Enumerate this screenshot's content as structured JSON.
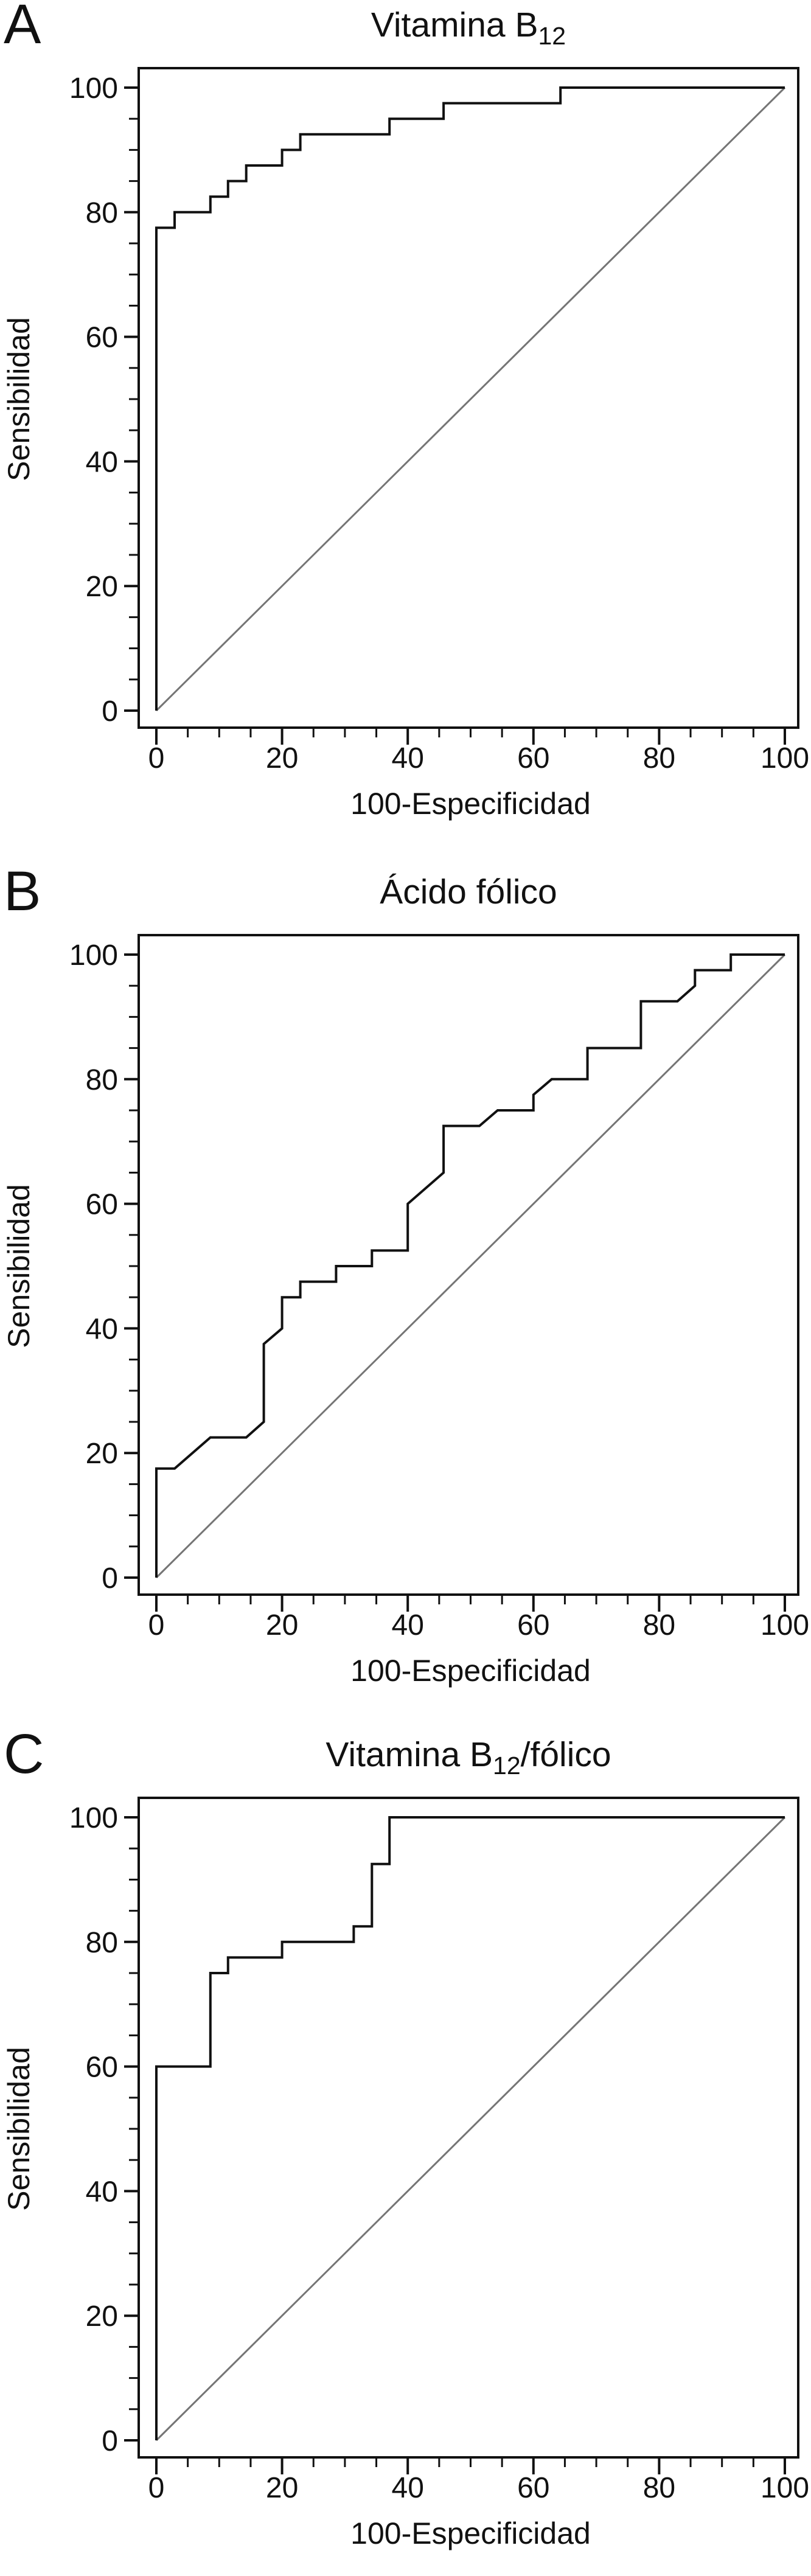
{
  "figure": {
    "background": "#ffffff",
    "curve_color": "#111111",
    "reference_color": "#757575",
    "text_color": "#111111"
  },
  "chart_data": [
    {
      "letter": "A",
      "type": "line",
      "title": {
        "main": "Vitamina B",
        "sub": "12",
        "suffix": ""
      },
      "xlabel": "100-Especificidad",
      "ylabel": "Sensibilidad",
      "xlim": [
        0,
        100
      ],
      "ylim": [
        0,
        100
      ],
      "xticks": [
        0,
        20,
        40,
        60,
        80,
        100
      ],
      "yticks": [
        0,
        20,
        40,
        60,
        80,
        100
      ],
      "minor_tick_step": 5,
      "grid": false,
      "legend": "none",
      "roc_points": [
        [
          0,
          0
        ],
        [
          0,
          77.5
        ],
        [
          2.9,
          77.5
        ],
        [
          2.9,
          80
        ],
        [
          8.6,
          80
        ],
        [
          8.6,
          82.5
        ],
        [
          11.4,
          82.5
        ],
        [
          11.4,
          85
        ],
        [
          14.3,
          85
        ],
        [
          14.3,
          87.5
        ],
        [
          20,
          87.5
        ],
        [
          20,
          90
        ],
        [
          22.9,
          90
        ],
        [
          22.9,
          92.5
        ],
        [
          37.1,
          92.5
        ],
        [
          37.1,
          95
        ],
        [
          45.7,
          95
        ],
        [
          45.7,
          97.5
        ],
        [
          64.3,
          97.5
        ],
        [
          64.3,
          100
        ],
        [
          100,
          100
        ]
      ],
      "reference_points": [
        [
          0,
          0
        ],
        [
          100,
          100
        ]
      ]
    },
    {
      "letter": "B",
      "type": "line",
      "title": {
        "main": "Ácido fólico",
        "sub": "",
        "suffix": ""
      },
      "xlabel": "100-Especificidad",
      "ylabel": "Sensibilidad",
      "xlim": [
        0,
        100
      ],
      "ylim": [
        0,
        100
      ],
      "xticks": [
        0,
        20,
        40,
        60,
        80,
        100
      ],
      "yticks": [
        0,
        20,
        40,
        60,
        80,
        100
      ],
      "minor_tick_step": 5,
      "grid": false,
      "legend": "none",
      "roc_points": [
        [
          0,
          0
        ],
        [
          0,
          17.5
        ],
        [
          2.9,
          17.5
        ],
        [
          8.6,
          22.5
        ],
        [
          14.3,
          22.5
        ],
        [
          17.1,
          25
        ],
        [
          17.1,
          37.5
        ],
        [
          20,
          40
        ],
        [
          20,
          45
        ],
        [
          22.9,
          45
        ],
        [
          22.9,
          47.5
        ],
        [
          28.6,
          47.5
        ],
        [
          28.6,
          50
        ],
        [
          34.3,
          50
        ],
        [
          34.3,
          52.5
        ],
        [
          40,
          52.5
        ],
        [
          40,
          60
        ],
        [
          45.7,
          65
        ],
        [
          45.7,
          72.5
        ],
        [
          51.4,
          72.5
        ],
        [
          54.3,
          75
        ],
        [
          60,
          75
        ],
        [
          60,
          77.5
        ],
        [
          62.9,
          80
        ],
        [
          68.6,
          80
        ],
        [
          68.6,
          85
        ],
        [
          77.1,
          85
        ],
        [
          77.1,
          92.5
        ],
        [
          82.9,
          92.5
        ],
        [
          85.7,
          95
        ],
        [
          85.7,
          97.5
        ],
        [
          91.4,
          97.5
        ],
        [
          91.4,
          100
        ],
        [
          100,
          100
        ]
      ],
      "reference_points": [
        [
          0,
          0
        ],
        [
          100,
          100
        ]
      ]
    },
    {
      "letter": "C",
      "type": "line",
      "title": {
        "main": "Vitamina B",
        "sub": "12",
        "suffix": "/fólico"
      },
      "xlabel": "100-Especificidad",
      "ylabel": "Sensibilidad",
      "xlim": [
        0,
        100
      ],
      "ylim": [
        0,
        100
      ],
      "xticks": [
        0,
        20,
        40,
        60,
        80,
        100
      ],
      "yticks": [
        0,
        20,
        40,
        60,
        80,
        100
      ],
      "minor_tick_step": 5,
      "grid": false,
      "legend": "none",
      "roc_points": [
        [
          0,
          0
        ],
        [
          0,
          60
        ],
        [
          8.6,
          60
        ],
        [
          8.6,
          75
        ],
        [
          11.4,
          75
        ],
        [
          11.4,
          77.5
        ],
        [
          20,
          77.5
        ],
        [
          20,
          80
        ],
        [
          31.4,
          80
        ],
        [
          31.4,
          82.5
        ],
        [
          34.3,
          82.5
        ],
        [
          34.3,
          92.5
        ],
        [
          37.1,
          92.5
        ],
        [
          37.1,
          100
        ],
        [
          100,
          100
        ]
      ],
      "reference_points": [
        [
          0,
          0
        ],
        [
          100,
          100
        ]
      ]
    }
  ]
}
